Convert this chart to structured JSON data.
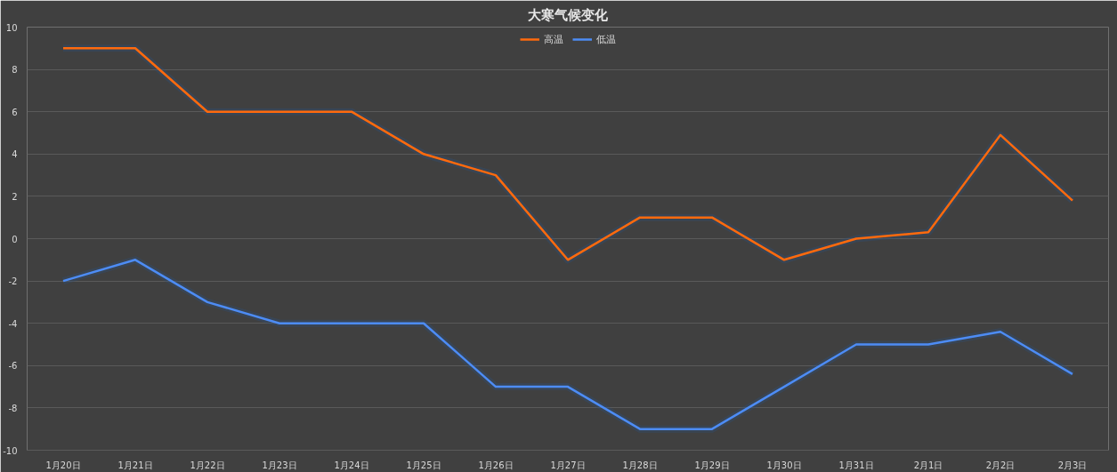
{
  "chart_data": {
    "type": "line",
    "title": "大寒气候变化",
    "categories": [
      "1月20日",
      "1月21日",
      "1月22日",
      "1月23日",
      "1月24日",
      "1月25日",
      "1月26日",
      "1月27日",
      "1月28日",
      "1月29日",
      "1月30日",
      "1月31日",
      "2月1日",
      "2月2日",
      "2月3日"
    ],
    "series": [
      {
        "name": "高温",
        "color": "#ff6a0d",
        "values": [
          9,
          9,
          6,
          6,
          6,
          4,
          3,
          -1,
          1,
          1,
          -1,
          0,
          0.3,
          4.9,
          1.8
        ]
      },
      {
        "name": "低温",
        "color": "#4d8cf5",
        "values": [
          -2,
          -1,
          -3,
          -4,
          -4,
          -4,
          -7,
          -7,
          -9,
          -9,
          -7,
          -5,
          -5,
          -4.4,
          -6.4
        ]
      }
    ],
    "ylim": [
      -10,
      10
    ],
    "yticks": [
      -10,
      -8,
      -6,
      -4,
      -2,
      0,
      2,
      4,
      6,
      8,
      10
    ],
    "grid": "y",
    "legend": "top",
    "marker": "none",
    "line_style": "solid"
  }
}
